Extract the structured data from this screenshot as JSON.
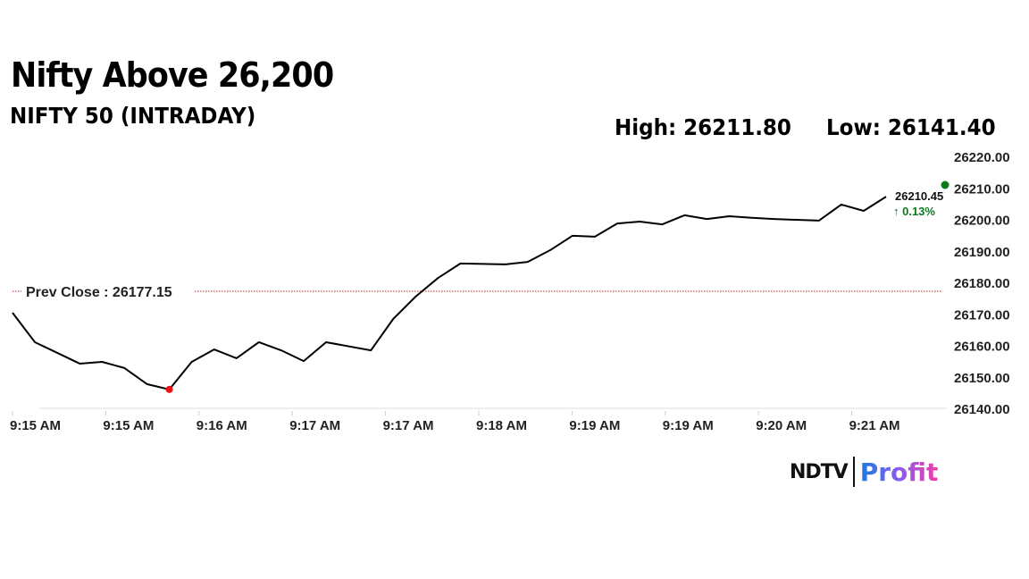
{
  "header": {
    "title": "Nifty Above 26,200",
    "subtitle": "NIFTY 50 (INTRADAY)",
    "high_label": "High: 26211.80",
    "low_label": "Low: 26141.40"
  },
  "logo": {
    "brand": "NDTV",
    "product": "Profit"
  },
  "chart_data": {
    "type": "line",
    "ylim": [
      26140,
      26220
    ],
    "y_ticks": [
      "26220.00",
      "26210.00",
      "26200.00",
      "26190.00",
      "26180.00",
      "26170.00",
      "26160.00",
      "26150.00",
      "26140.00"
    ],
    "x_ticks": [
      "9:15 AM",
      "9:15 AM",
      "9:16 AM",
      "9:17 AM",
      "9:17 AM",
      "9:18 AM",
      "9:19 AM",
      "9:19 AM",
      "9:20 AM",
      "9:21 AM"
    ],
    "grid": false,
    "values": [
      26170.35,
      26161.0,
      26157.6,
      26154.2,
      26154.75,
      26152.8,
      26147.7,
      26146.0,
      26154.75,
      26158.7,
      26155.9,
      26161.0,
      26158.4,
      26155.0,
      26161.0,
      26159.7,
      26158.4,
      26168.4,
      26175.5,
      26181.4,
      26186.0,
      26185.85,
      26185.7,
      26186.5,
      26190.2,
      26194.8,
      26194.5,
      26198.7,
      26199.3,
      26198.4,
      26201.3,
      26200.1,
      26201.0,
      26200.5,
      26200.1,
      26199.85,
      26199.6,
      26204.7,
      26202.7,
      26207.2
    ],
    "prev_close": 26177.15,
    "prev_close_label": "Prev Close : 26177.15",
    "last_value_label": "26210.45",
    "change_label": "↑ 0.13%",
    "low_marker_index": 7,
    "line_color": "#000000",
    "prev_close_color": "#b0202a",
    "low_marker_color": "#e81010",
    "up_color": "#0a7a1a"
  }
}
